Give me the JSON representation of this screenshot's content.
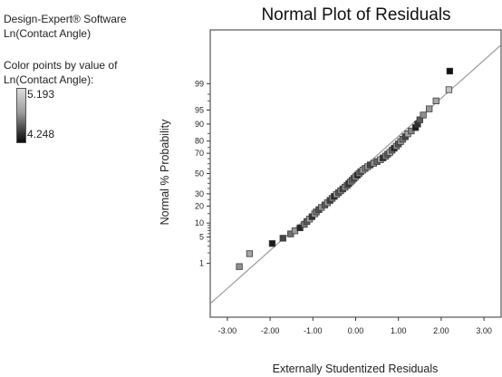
{
  "sidebar": {
    "software": "Design-Expert® Software",
    "response": "Ln(Contact Angle)",
    "color_caption_1": "Color points by value of",
    "color_caption_2": "Ln(Contact Angle):",
    "legend_max": "5.193",
    "legend_min": "4.248"
  },
  "chart_data": {
    "type": "scatter",
    "title": "Normal Plot of Residuals",
    "xlabel": "Externally Studentized Residuals",
    "ylabel": "Normal % Probability",
    "xlim": [
      -3.4,
      3.4
    ],
    "x_ticks": [
      "-3.00",
      "-2.00",
      "-1.00",
      "0.00",
      "1.00",
      "2.00",
      "3.00"
    ],
    "y_ticks": [
      "1",
      "5",
      "10",
      "20",
      "30",
      "50",
      "70",
      "80",
      "90",
      "95",
      "99"
    ],
    "y_scale": "normal-probability",
    "reference_line": true,
    "color_scale": {
      "min": 4.248,
      "max": 5.193,
      "low_color": "#111111",
      "high_color": "#d8d8d8"
    },
    "points": [
      {
        "x": -2.72,
        "y": 0.8,
        "c": 4.85
      },
      {
        "x": -2.48,
        "y": 1.9,
        "c": 4.95
      },
      {
        "x": -1.95,
        "y": 3.5,
        "c": 4.3
      },
      {
        "x": -1.7,
        "y": 4.7,
        "c": 4.5
      },
      {
        "x": -1.52,
        "y": 5.9,
        "c": 4.7
      },
      {
        "x": -1.42,
        "y": 6.9,
        "c": 4.9
      },
      {
        "x": -1.3,
        "y": 8.0,
        "c": 4.35
      },
      {
        "x": -1.2,
        "y": 9.4,
        "c": 4.75
      },
      {
        "x": -1.14,
        "y": 10.7,
        "c": 4.6
      },
      {
        "x": -1.08,
        "y": 11.9,
        "c": 4.95
      },
      {
        "x": -1.02,
        "y": 13.2,
        "c": 4.4
      },
      {
        "x": -0.96,
        "y": 14.8,
        "c": 5.0
      },
      {
        "x": -0.92,
        "y": 16.0,
        "c": 4.7
      },
      {
        "x": -0.86,
        "y": 17.5,
        "c": 4.55
      },
      {
        "x": -0.8,
        "y": 19.0,
        "c": 4.85
      },
      {
        "x": -0.72,
        "y": 20.8,
        "c": 4.6
      },
      {
        "x": -0.66,
        "y": 22.5,
        "c": 4.9
      },
      {
        "x": -0.6,
        "y": 24.3,
        "c": 4.45
      },
      {
        "x": -0.55,
        "y": 26.0,
        "c": 4.75
      },
      {
        "x": -0.5,
        "y": 27.7,
        "c": 4.35
      },
      {
        "x": -0.45,
        "y": 29.4,
        "c": 4.95
      },
      {
        "x": -0.4,
        "y": 31.0,
        "c": 4.6
      },
      {
        "x": -0.35,
        "y": 32.8,
        "c": 4.8
      },
      {
        "x": -0.3,
        "y": 34.5,
        "c": 4.5
      },
      {
        "x": -0.25,
        "y": 36.2,
        "c": 4.9
      },
      {
        "x": -0.2,
        "y": 38.0,
        "c": 4.65
      },
      {
        "x": -0.16,
        "y": 39.7,
        "c": 4.4
      },
      {
        "x": -0.12,
        "y": 41.5,
        "c": 4.85
      },
      {
        "x": -0.08,
        "y": 43.2,
        "c": 4.7
      },
      {
        "x": -0.04,
        "y": 45.0,
        "c": 4.55
      },
      {
        "x": 0.0,
        "y": 46.7,
        "c": 4.95
      },
      {
        "x": 0.04,
        "y": 48.4,
        "c": 4.3
      },
      {
        "x": 0.08,
        "y": 50.1,
        "c": 4.8
      },
      {
        "x": 0.12,
        "y": 51.9,
        "c": 4.6
      },
      {
        "x": 0.17,
        "y": 53.6,
        "c": 5.05
      },
      {
        "x": 0.22,
        "y": 55.3,
        "c": 4.75
      },
      {
        "x": 0.28,
        "y": 57.0,
        "c": 4.9
      },
      {
        "x": 0.34,
        "y": 58.8,
        "c": 4.5
      },
      {
        "x": 0.42,
        "y": 60.5,
        "c": 4.85
      },
      {
        "x": 0.5,
        "y": 62.2,
        "c": 4.65
      },
      {
        "x": 0.58,
        "y": 64.0,
        "c": 4.95
      },
      {
        "x": 0.64,
        "y": 65.7,
        "c": 4.4
      },
      {
        "x": 0.7,
        "y": 67.4,
        "c": 4.8
      },
      {
        "x": 0.75,
        "y": 69.2,
        "c": 4.6
      },
      {
        "x": 0.8,
        "y": 70.9,
        "c": 5.0
      },
      {
        "x": 0.85,
        "y": 72.7,
        "c": 4.7
      },
      {
        "x": 0.9,
        "y": 74.4,
        "c": 4.35
      },
      {
        "x": 0.95,
        "y": 76.1,
        "c": 4.85
      },
      {
        "x": 1.0,
        "y": 77.8,
        "c": 4.55
      },
      {
        "x": 1.05,
        "y": 79.6,
        "c": 4.9
      },
      {
        "x": 1.1,
        "y": 81.3,
        "c": 4.75
      },
      {
        "x": 1.16,
        "y": 83.0,
        "c": 4.5
      },
      {
        "x": 1.22,
        "y": 84.8,
        "c": 4.95
      },
      {
        "x": 1.3,
        "y": 86.5,
        "c": 4.8
      },
      {
        "x": 1.4,
        "y": 88.3,
        "c": 4.3
      },
      {
        "x": 1.45,
        "y": 90.0,
        "c": 4.4
      },
      {
        "x": 1.5,
        "y": 91.8,
        "c": 4.6
      },
      {
        "x": 1.58,
        "y": 93.5,
        "c": 4.85
      },
      {
        "x": 1.72,
        "y": 95.3,
        "c": 4.9
      },
      {
        "x": 1.88,
        "y": 97.0,
        "c": 4.95
      },
      {
        "x": 2.18,
        "y": 98.5,
        "c": 5.1
      },
      {
        "x": 2.2,
        "y": 99.6,
        "c": 4.25
      }
    ]
  }
}
